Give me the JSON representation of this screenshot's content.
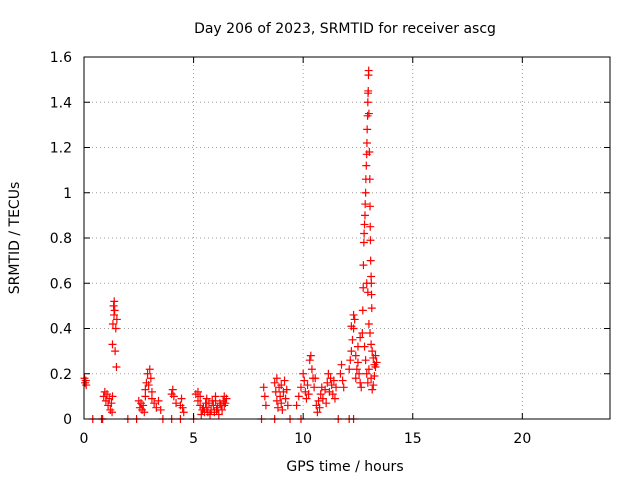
{
  "chart_data": {
    "type": "scatter",
    "title": "Day 206 of 2023, SRMTID for receiver ascg",
    "xlabel": "GPS time / hours",
    "ylabel": "SRMTID / TECUs",
    "xlim": [
      0,
      24
    ],
    "ylim": [
      0,
      1.6
    ],
    "x_ticks": [
      0,
      5,
      10,
      15,
      20
    ],
    "x_tick_labels": [
      "0",
      "5",
      "10",
      "15",
      "20"
    ],
    "y_ticks": [
      0,
      0.2,
      0.4,
      0.6,
      0.8,
      1.0,
      1.2,
      1.4,
      1.6
    ],
    "y_tick_labels": [
      "0",
      "0.2",
      "0.4",
      "0.6",
      "0.8",
      "1",
      "1.2",
      "1.4",
      "1.6"
    ],
    "grid": true,
    "marker": "plus",
    "color": "#ff0000",
    "series": [
      {
        "name": "SRMTID",
        "points": [
          [
            0.02,
            0.18
          ],
          [
            0.05,
            0.16
          ],
          [
            0.08,
            0.17
          ],
          [
            0.1,
            0.15
          ],
          [
            0.4,
            0.0
          ],
          [
            0.8,
            0.0
          ],
          [
            0.85,
            0.0
          ],
          [
            0.9,
            0.1
          ],
          [
            0.95,
            0.12
          ],
          [
            1.0,
            0.08
          ],
          [
            1.05,
            0.11
          ],
          [
            1.1,
            0.06
          ],
          [
            1.15,
            0.09
          ],
          [
            1.2,
            0.04
          ],
          [
            1.25,
            0.07
          ],
          [
            1.28,
            0.03
          ],
          [
            1.3,
            0.1
          ],
          [
            1.3,
            0.33
          ],
          [
            1.32,
            0.42
          ],
          [
            1.35,
            0.5
          ],
          [
            1.37,
            0.46
          ],
          [
            1.38,
            0.52
          ],
          [
            1.4,
            0.48
          ],
          [
            1.42,
            0.3
          ],
          [
            1.45,
            0.4
          ],
          [
            1.48,
            0.23
          ],
          [
            1.5,
            0.44
          ],
          [
            2.0,
            0.0
          ],
          [
            2.4,
            0.0
          ],
          [
            2.5,
            0.08
          ],
          [
            2.55,
            0.05
          ],
          [
            2.6,
            0.07
          ],
          [
            2.65,
            0.04
          ],
          [
            2.7,
            0.06
          ],
          [
            2.75,
            0.03
          ],
          [
            2.8,
            0.1
          ],
          [
            2.8,
            0.13
          ],
          [
            2.85,
            0.16
          ],
          [
            2.9,
            0.2
          ],
          [
            2.95,
            0.15
          ],
          [
            3.0,
            0.22
          ],
          [
            3.05,
            0.18
          ],
          [
            3.1,
            0.12
          ],
          [
            3.1,
            0.09
          ],
          [
            3.2,
            0.07
          ],
          [
            3.3,
            0.05
          ],
          [
            3.4,
            0.08
          ],
          [
            3.5,
            0.04
          ],
          [
            3.6,
            0.0
          ],
          [
            4.0,
            0.0
          ],
          [
            4.4,
            0.0
          ],
          [
            4.0,
            0.11
          ],
          [
            4.05,
            0.13
          ],
          [
            4.1,
            0.1
          ],
          [
            4.2,
            0.07
          ],
          [
            4.4,
            0.06
          ],
          [
            4.45,
            0.09
          ],
          [
            4.5,
            0.05
          ],
          [
            4.55,
            0.03
          ],
          [
            5.0,
            0.0
          ],
          [
            5.1,
            0.11
          ],
          [
            5.2,
            0.08
          ],
          [
            5.3,
            0.06
          ],
          [
            5.4,
            0.04
          ],
          [
            5.5,
            0.03
          ],
          [
            5.6,
            0.05
          ],
          [
            5.7,
            0.07
          ],
          [
            5.8,
            0.04
          ],
          [
            5.9,
            0.06
          ],
          [
            6.0,
            0.08
          ],
          [
            6.1,
            0.05
          ],
          [
            6.2,
            0.07
          ],
          [
            6.3,
            0.04
          ],
          [
            6.4,
            0.06
          ],
          [
            6.5,
            0.09
          ],
          [
            5.35,
            0.02
          ],
          [
            5.45,
            0.05
          ],
          [
            5.55,
            0.07
          ],
          [
            5.65,
            0.03
          ],
          [
            5.75,
            0.02
          ],
          [
            5.85,
            0.08
          ],
          [
            5.95,
            0.03
          ],
          [
            6.05,
            0.04
          ],
          [
            6.15,
            0.02
          ],
          [
            6.25,
            0.06
          ],
          [
            6.35,
            0.08
          ],
          [
            6.45,
            0.07
          ],
          [
            5.2,
            0.12
          ],
          [
            5.3,
            0.1
          ],
          [
            5.6,
            0.09
          ],
          [
            6.0,
            0.1
          ],
          [
            6.4,
            0.1
          ],
          [
            8.1,
            0.0
          ],
          [
            8.7,
            0.0
          ],
          [
            9.4,
            0.0
          ],
          [
            9.9,
            0.0
          ],
          [
            8.2,
            0.14
          ],
          [
            8.25,
            0.1
          ],
          [
            8.3,
            0.06
          ],
          [
            8.7,
            0.16
          ],
          [
            8.75,
            0.12
          ],
          [
            8.8,
            0.08
          ],
          [
            8.85,
            0.05
          ],
          [
            8.9,
            0.14
          ],
          [
            8.95,
            0.1
          ],
          [
            9.0,
            0.07
          ],
          [
            9.05,
            0.04
          ],
          [
            9.1,
            0.12
          ],
          [
            9.15,
            0.17
          ],
          [
            9.2,
            0.09
          ],
          [
            9.3,
            0.06
          ],
          [
            8.8,
            0.18
          ],
          [
            9.0,
            0.15
          ],
          [
            9.25,
            0.13
          ],
          [
            9.7,
            0.06
          ],
          [
            9.8,
            0.1
          ],
          [
            9.9,
            0.14
          ],
          [
            10.0,
            0.2
          ],
          [
            10.05,
            0.17
          ],
          [
            10.1,
            0.12
          ],
          [
            10.15,
            0.09
          ],
          [
            10.2,
            0.15
          ],
          [
            10.25,
            0.11
          ],
          [
            10.3,
            0.26
          ],
          [
            10.35,
            0.28
          ],
          [
            10.4,
            0.22
          ],
          [
            10.45,
            0.18
          ],
          [
            10.5,
            0.14
          ],
          [
            10.6,
            0.06
          ],
          [
            10.65,
            0.03
          ],
          [
            10.7,
            0.08
          ],
          [
            10.75,
            0.05
          ],
          [
            10.8,
            0.11
          ],
          [
            10.9,
            0.09
          ],
          [
            11.0,
            0.13
          ],
          [
            11.1,
            0.16
          ],
          [
            11.15,
            0.2
          ],
          [
            11.2,
            0.12
          ],
          [
            11.25,
            0.18
          ],
          [
            11.3,
            0.15
          ],
          [
            11.35,
            0.11
          ],
          [
            11.4,
            0.17
          ],
          [
            11.5,
            0.14
          ],
          [
            10.55,
            0.18
          ],
          [
            10.85,
            0.14
          ],
          [
            11.05,
            0.07
          ],
          [
            11.45,
            0.09
          ],
          [
            11.6,
            0.0
          ],
          [
            11.7,
            0.2
          ],
          [
            11.75,
            0.24
          ],
          [
            11.8,
            0.17
          ],
          [
            11.85,
            0.14
          ],
          [
            12.1,
            0.0
          ],
          [
            12.3,
            0.0
          ],
          [
            12.1,
            0.22
          ],
          [
            12.15,
            0.26
          ],
          [
            12.2,
            0.3
          ],
          [
            12.25,
            0.35
          ],
          [
            12.3,
            0.4
          ],
          [
            12.35,
            0.44
          ],
          [
            12.4,
            0.28
          ],
          [
            12.45,
            0.22
          ],
          [
            12.5,
            0.32
          ],
          [
            12.55,
            0.2
          ],
          [
            12.6,
            0.16
          ],
          [
            12.65,
            0.14
          ],
          [
            12.2,
            0.41
          ],
          [
            12.3,
            0.46
          ],
          [
            12.4,
            0.18
          ],
          [
            12.5,
            0.25
          ],
          [
            12.6,
            0.36
          ],
          [
            12.7,
            0.38
          ],
          [
            12.72,
            0.48
          ],
          [
            12.74,
            0.58
          ],
          [
            12.75,
            0.68
          ],
          [
            12.77,
            0.78
          ],
          [
            12.78,
            0.82
          ],
          [
            12.8,
            0.86
          ],
          [
            12.82,
            0.9
          ],
          [
            12.83,
            0.95
          ],
          [
            12.85,
            1.0
          ],
          [
            12.86,
            1.06
          ],
          [
            12.88,
            1.12
          ],
          [
            12.9,
            1.17
          ],
          [
            12.91,
            1.22
          ],
          [
            12.92,
            1.28
          ],
          [
            12.94,
            1.34
          ],
          [
            12.95,
            1.4
          ],
          [
            12.96,
            1.44
          ],
          [
            12.97,
            1.45
          ],
          [
            12.98,
            1.52
          ],
          [
            12.99,
            1.54
          ],
          [
            13.0,
            1.35
          ],
          [
            13.02,
            1.18
          ],
          [
            13.04,
            1.06
          ],
          [
            13.05,
            0.94
          ],
          [
            13.06,
            0.85
          ],
          [
            13.07,
            0.79
          ],
          [
            13.08,
            0.7
          ],
          [
            13.1,
            0.63
          ],
          [
            13.11,
            0.6
          ],
          [
            13.12,
            0.55
          ],
          [
            13.13,
            0.49
          ],
          [
            12.9,
            0.6
          ],
          [
            12.95,
            0.56
          ],
          [
            13.0,
            0.42
          ],
          [
            13.05,
            0.38
          ],
          [
            13.1,
            0.33
          ],
          [
            13.15,
            0.3
          ],
          [
            13.2,
            0.27
          ],
          [
            13.25,
            0.24
          ],
          [
            12.8,
            0.32
          ],
          [
            12.85,
            0.26
          ],
          [
            12.9,
            0.2
          ],
          [
            12.95,
            0.16
          ],
          [
            13.0,
            0.22
          ],
          [
            13.1,
            0.18
          ],
          [
            13.15,
            0.13
          ],
          [
            13.2,
            0.15
          ],
          [
            13.25,
            0.19
          ],
          [
            13.3,
            0.23
          ],
          [
            13.35,
            0.25
          ],
          [
            13.3,
            0.28
          ]
        ]
      }
    ]
  }
}
